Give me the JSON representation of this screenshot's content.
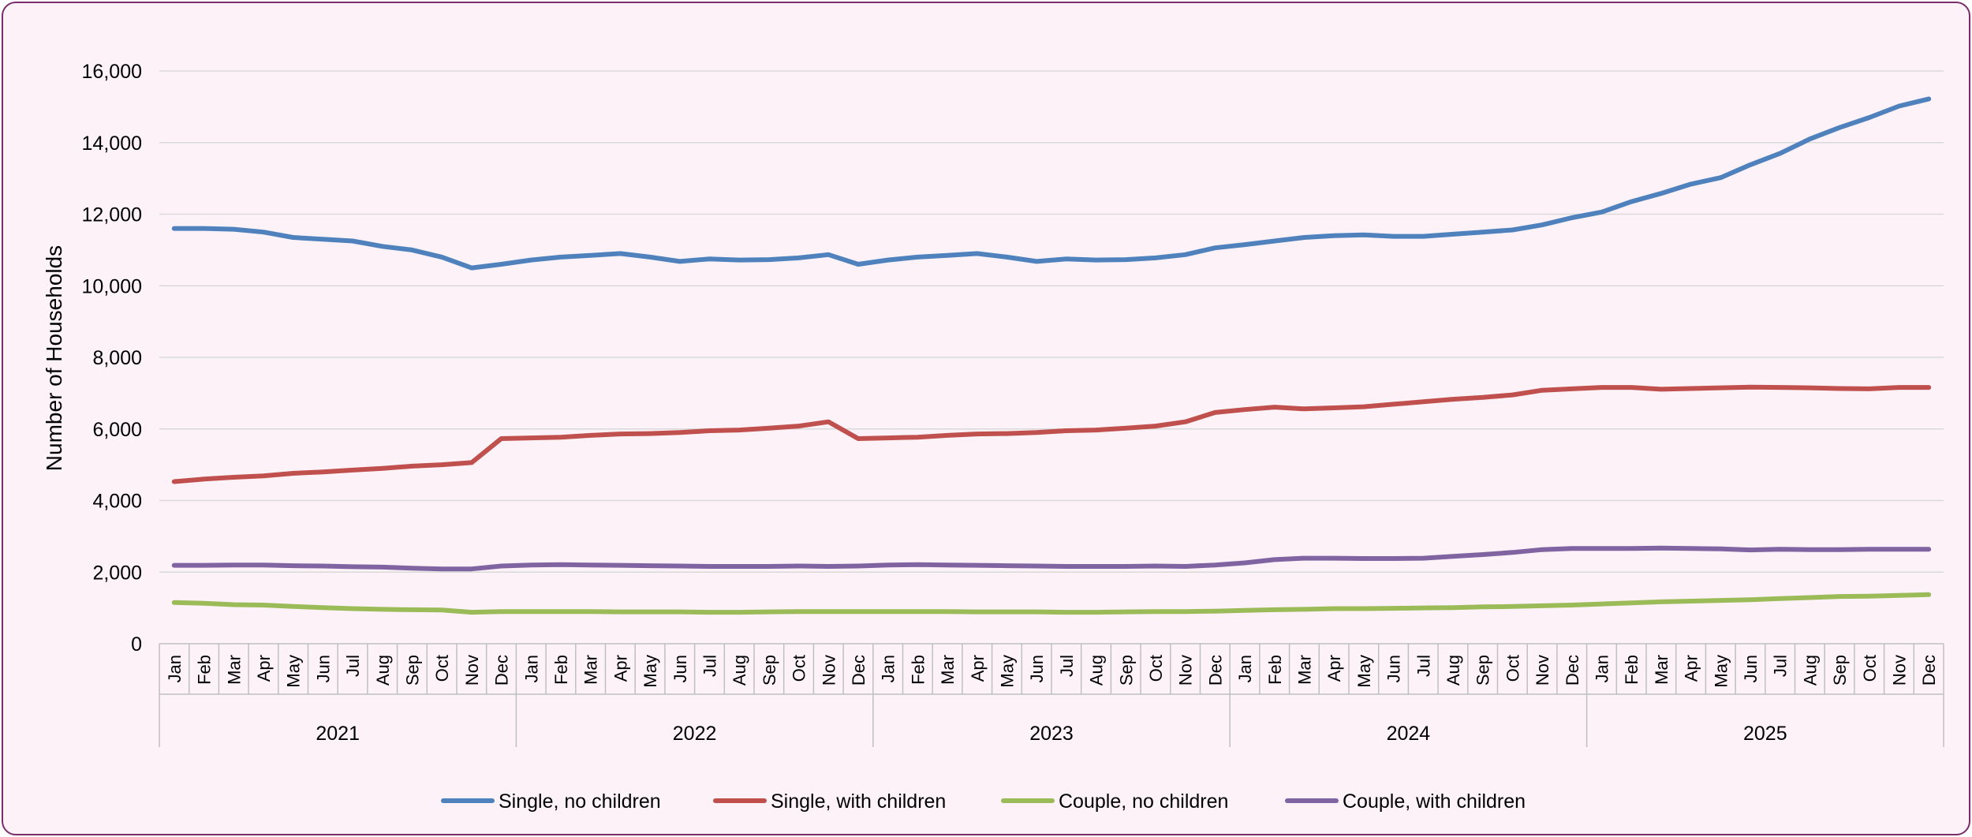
{
  "chart_data": {
    "type": "line",
    "title": "",
    "xlabel": "",
    "ylabel": "Number of Households",
    "ylim": [
      0,
      16000
    ],
    "yticks": [
      0,
      2000,
      4000,
      6000,
      8000,
      10000,
      12000,
      14000,
      16000
    ],
    "ytick_labels": [
      "0",
      "2,000",
      "4,000",
      "6,000",
      "8,000",
      "10,000",
      "12,000",
      "14,000",
      "16,000"
    ],
    "grid": true,
    "legend_position": "bottom",
    "years": [
      "2021",
      "2022",
      "2023",
      "2024",
      "2025"
    ],
    "months": [
      "Jan",
      "Feb",
      "Mar",
      "Apr",
      "May",
      "Jun",
      "Jul",
      "Aug",
      "Sep",
      "Oct",
      "Nov",
      "Dec"
    ],
    "series": [
      {
        "name": "Single, no children",
        "color": "#4f81bd",
        "values": [
          11600,
          11600,
          11580,
          11500,
          11350,
          11300,
          11250,
          11100,
          11000,
          10800,
          10500,
          10600,
          10720,
          10800,
          10850,
          10900,
          10800,
          10680,
          10750,
          10720,
          10730,
          10780,
          10870,
          10600,
          10720,
          10800,
          10850,
          10900,
          10800,
          10680,
          10750,
          10720,
          10730,
          10780,
          10870,
          11060,
          11150,
          11250,
          11350,
          11400,
          11420,
          11380,
          11380,
          11440,
          11500,
          11560,
          11700,
          11900,
          12060,
          12350,
          12580,
          12840,
          13020,
          13380,
          13700,
          14100,
          14420,
          14700,
          15020,
          15220
        ]
      },
      {
        "name": "Single, with children",
        "color": "#c0504d",
        "values": [
          4530,
          4600,
          4650,
          4690,
          4760,
          4800,
          4850,
          4900,
          4960,
          5000,
          5060,
          5730,
          5750,
          5770,
          5820,
          5860,
          5870,
          5900,
          5950,
          5970,
          6020,
          6080,
          6200,
          5730,
          5750,
          5770,
          5820,
          5860,
          5870,
          5900,
          5950,
          5970,
          6020,
          6080,
          6200,
          6460,
          6540,
          6610,
          6560,
          6590,
          6620,
          6690,
          6760,
          6830,
          6880,
          6950,
          7080,
          7120,
          7160,
          7160,
          7110,
          7130,
          7150,
          7170,
          7160,
          7150,
          7130,
          7120,
          7160,
          7160
        ]
      },
      {
        "name": "Couple, no children",
        "color": "#9bbb59",
        "values": [
          1150,
          1130,
          1090,
          1080,
          1040,
          1010,
          980,
          960,
          950,
          940,
          880,
          900,
          900,
          900,
          900,
          890,
          890,
          890,
          880,
          880,
          890,
          900,
          900,
          900,
          900,
          900,
          900,
          890,
          890,
          890,
          880,
          880,
          890,
          900,
          900,
          910,
          930,
          950,
          960,
          980,
          980,
          990,
          1000,
          1010,
          1030,
          1040,
          1060,
          1080,
          1110,
          1140,
          1170,
          1190,
          1210,
          1230,
          1260,
          1290,
          1320,
          1330,
          1350,
          1370
        ]
      },
      {
        "name": "Couple, with children",
        "color": "#8064a2",
        "values": [
          2190,
          2190,
          2200,
          2200,
          2180,
          2170,
          2150,
          2140,
          2110,
          2090,
          2090,
          2170,
          2200,
          2210,
          2200,
          2190,
          2180,
          2170,
          2160,
          2160,
          2160,
          2170,
          2160,
          2170,
          2200,
          2210,
          2200,
          2190,
          2180,
          2170,
          2160,
          2160,
          2160,
          2170,
          2160,
          2200,
          2260,
          2350,
          2390,
          2390,
          2380,
          2380,
          2390,
          2440,
          2490,
          2550,
          2630,
          2660,
          2660,
          2660,
          2670,
          2660,
          2650,
          2620,
          2640,
          2630,
          2630,
          2640,
          2640,
          2640
        ]
      }
    ]
  }
}
